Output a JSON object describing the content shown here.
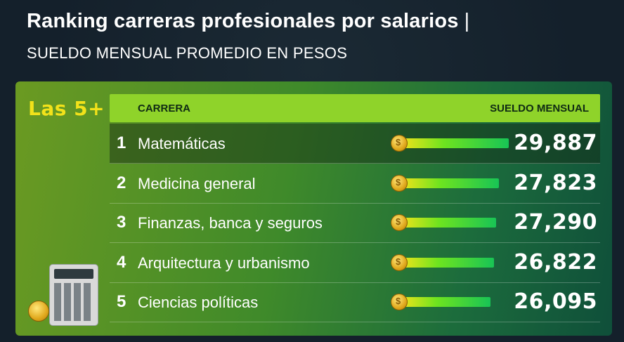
{
  "header": {
    "title": "Ranking carreras profesionales por salarios",
    "title_separator": "|",
    "subtitle": "SUELDO MENSUAL PROMEDIO EN PESOS"
  },
  "panel": {
    "badge": "Las 5+",
    "col_career": "CARRERA",
    "col_salary": "SUELDO MENSUAL"
  },
  "rows": [
    {
      "rank": "1",
      "career": "Matemáticas",
      "value_label": "29,887"
    },
    {
      "rank": "2",
      "career": "Medicina general",
      "value_label": "27,823"
    },
    {
      "rank": "3",
      "career": "Finanzas, banca y seguros",
      "value_label": "27,290"
    },
    {
      "rank": "4",
      "career": "Arquitectura y urbanismo",
      "value_label": "26,822"
    },
    {
      "rank": "5",
      "career": "Ciencias políticas",
      "value_label": "26,095"
    }
  ],
  "chart_data": {
    "type": "bar",
    "categories": [
      "Matemáticas",
      "Medicina general",
      "Finanzas, banca y seguros",
      "Arquitectura y urbanismo",
      "Ciencias políticas"
    ],
    "values": [
      29887,
      27823,
      27290,
      26822,
      26095
    ],
    "title": "Ranking carreras profesionales por salarios",
    "subtitle": "SUELDO MENSUAL PROMEDIO EN PESOS",
    "xlabel": "CARRERA",
    "ylabel": "SUELDO MENSUAL"
  },
  "colors": {
    "background": "#14202b",
    "panel_green": "#3f8a2a",
    "header_green": "#8fd32a",
    "badge_yellow": "#f2e21a",
    "bar_start": "#f5e21a",
    "bar_end": "#18c455"
  },
  "icons": {
    "coin": "coin-icon",
    "calculator": "calculator-icon"
  }
}
